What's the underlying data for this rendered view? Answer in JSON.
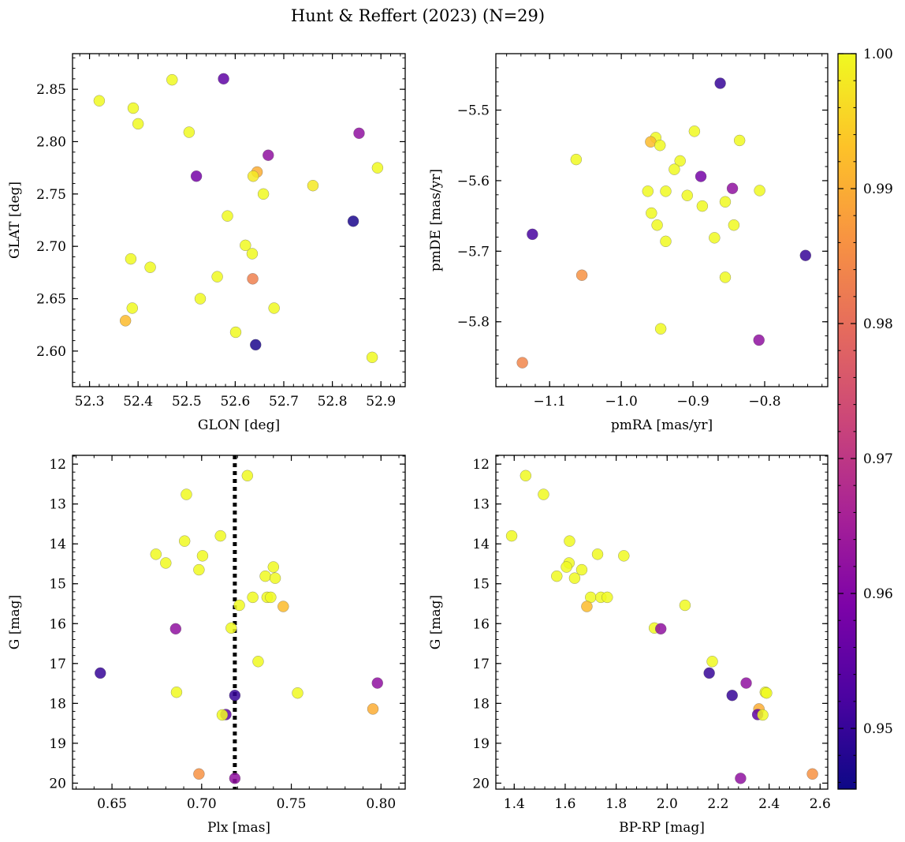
{
  "figure": {
    "title": "Hunt & Reffert (2023) (N=29)",
    "colorbar": {
      "min": 0.9455,
      "max": 1.0,
      "ticks": [
        0.95,
        0.96,
        0.97,
        0.98,
        0.99,
        1.0
      ],
      "tick_labels": [
        "0.95",
        "0.96",
        "0.97",
        "0.98",
        "0.99",
        "1.00"
      ],
      "colormap": "plasma"
    }
  },
  "chart_data": [
    {
      "type": "scatter",
      "id": "glon-glat",
      "xlabel": "GLON [deg]",
      "ylabel": "GLAT [deg]",
      "xlim": [
        52.265,
        52.95
      ],
      "ylim": [
        2.566,
        2.884
      ],
      "xticks": [
        52.3,
        52.4,
        52.5,
        52.6,
        52.7,
        52.8,
        52.9
      ],
      "xtick_labels": [
        "52.3",
        "52.4",
        "52.5",
        "52.6",
        "52.7",
        "52.8",
        "52.9"
      ],
      "yticks": [
        2.6,
        2.65,
        2.7,
        2.75,
        2.8,
        2.85
      ],
      "ytick_labels": [
        "2.60",
        "2.65",
        "2.70",
        "2.75",
        "2.80",
        "2.85"
      ],
      "x_minor": 0.02,
      "y_minor": 0.01,
      "y_inverted": false,
      "points": [
        {
          "x": 52.32,
          "y": 2.839,
          "c": 1.0
        },
        {
          "x": 52.39,
          "y": 2.832,
          "c": 1.0
        },
        {
          "x": 52.4,
          "y": 2.817,
          "c": 1.0
        },
        {
          "x": 52.47,
          "y": 2.859,
          "c": 1.0
        },
        {
          "x": 52.576,
          "y": 2.86,
          "c": 0.955
        },
        {
          "x": 52.505,
          "y": 2.809,
          "c": 1.0
        },
        {
          "x": 52.855,
          "y": 2.808,
          "c": 0.962
        },
        {
          "x": 52.668,
          "y": 2.787,
          "c": 0.962
        },
        {
          "x": 52.52,
          "y": 2.767,
          "c": 0.958
        },
        {
          "x": 52.645,
          "y": 2.771,
          "c": 0.99
        },
        {
          "x": 52.637,
          "y": 2.767,
          "c": 0.998
        },
        {
          "x": 52.893,
          "y": 2.775,
          "c": 1.0
        },
        {
          "x": 52.76,
          "y": 2.758,
          "c": 0.998
        },
        {
          "x": 52.658,
          "y": 2.75,
          "c": 1.0
        },
        {
          "x": 52.584,
          "y": 2.729,
          "c": 1.0
        },
        {
          "x": 52.843,
          "y": 2.724,
          "c": 0.947
        },
        {
          "x": 52.621,
          "y": 2.701,
          "c": 1.0
        },
        {
          "x": 52.635,
          "y": 2.693,
          "c": 1.0
        },
        {
          "x": 52.385,
          "y": 2.688,
          "c": 1.0
        },
        {
          "x": 52.425,
          "y": 2.68,
          "c": 1.0
        },
        {
          "x": 52.563,
          "y": 2.671,
          "c": 1.0
        },
        {
          "x": 52.636,
          "y": 2.669,
          "c": 0.983
        },
        {
          "x": 52.528,
          "y": 2.65,
          "c": 1.0
        },
        {
          "x": 52.388,
          "y": 2.641,
          "c": 1.0
        },
        {
          "x": 52.68,
          "y": 2.641,
          "c": 1.0
        },
        {
          "x": 52.374,
          "y": 2.629,
          "c": 0.992
        },
        {
          "x": 52.601,
          "y": 2.618,
          "c": 1.0
        },
        {
          "x": 52.642,
          "y": 2.606,
          "c": 0.947
        },
        {
          "x": 52.882,
          "y": 2.594,
          "c": 1.0
        }
      ]
    },
    {
      "type": "scatter",
      "id": "pmra-pmde",
      "xlabel": "pmRA [mas/yr]",
      "ylabel": "pmDE [mas/yr]",
      "xlim": [
        -1.175,
        -0.712
      ],
      "ylim": [
        -5.892,
        -5.42
      ],
      "xticks": [
        -1.1,
        -1.0,
        -0.9,
        -0.8
      ],
      "xtick_labels": [
        "−1.1",
        "−1.0",
        "−0.9",
        "−0.8"
      ],
      "yticks": [
        -5.8,
        -5.7,
        -5.6,
        -5.5
      ],
      "ytick_labels": [
        "−5.8",
        "−5.7",
        "−5.6",
        "−5.5"
      ],
      "x_minor": 0.02,
      "y_minor": 0.02,
      "y_inverted": false,
      "points": [
        {
          "x": -0.862,
          "y": -5.462,
          "c": 0.95
        },
        {
          "x": -0.898,
          "y": -5.53,
          "c": 1.0
        },
        {
          "x": -0.952,
          "y": -5.539,
          "c": 1.0
        },
        {
          "x": -0.959,
          "y": -5.545,
          "c": 0.992
        },
        {
          "x": -0.946,
          "y": -5.55,
          "c": 1.0
        },
        {
          "x": -0.835,
          "y": -5.543,
          "c": 1.0
        },
        {
          "x": -1.063,
          "y": -5.57,
          "c": 1.0
        },
        {
          "x": -0.918,
          "y": -5.572,
          "c": 1.0
        },
        {
          "x": -0.926,
          "y": -5.584,
          "c": 1.0
        },
        {
          "x": -0.889,
          "y": -5.594,
          "c": 0.958
        },
        {
          "x": -0.845,
          "y": -5.611,
          "c": 0.962
        },
        {
          "x": -0.963,
          "y": -5.615,
          "c": 1.0
        },
        {
          "x": -0.938,
          "y": -5.615,
          "c": 1.0
        },
        {
          "x": -0.908,
          "y": -5.621,
          "c": 1.0
        },
        {
          "x": -0.807,
          "y": -5.614,
          "c": 1.0
        },
        {
          "x": -0.855,
          "y": -5.63,
          "c": 1.0
        },
        {
          "x": -0.887,
          "y": -5.636,
          "c": 1.0
        },
        {
          "x": -0.958,
          "y": -5.646,
          "c": 1.0
        },
        {
          "x": -0.843,
          "y": -5.663,
          "c": 1.0
        },
        {
          "x": -0.95,
          "y": -5.663,
          "c": 1.0
        },
        {
          "x": -1.124,
          "y": -5.676,
          "c": 0.952
        },
        {
          "x": -0.87,
          "y": -5.681,
          "c": 1.0
        },
        {
          "x": -0.938,
          "y": -5.686,
          "c": 1.0
        },
        {
          "x": -0.743,
          "y": -5.706,
          "c": 0.95
        },
        {
          "x": -1.055,
          "y": -5.734,
          "c": 0.986
        },
        {
          "x": -0.855,
          "y": -5.737,
          "c": 1.0
        },
        {
          "x": -0.945,
          "y": -5.81,
          "c": 1.0
        },
        {
          "x": -0.808,
          "y": -5.826,
          "c": 0.962
        },
        {
          "x": -1.138,
          "y": -5.858,
          "c": 0.984
        }
      ]
    },
    {
      "type": "scatter",
      "id": "plx-g",
      "xlabel": "Plx [mas]",
      "ylabel": "G [mag]",
      "xlim": [
        0.628,
        0.8135
      ],
      "ylim": [
        11.78,
        20.15
      ],
      "xticks": [
        0.65,
        0.7,
        0.75,
        0.8
      ],
      "xtick_labels": [
        "0.65",
        "0.70",
        "0.75",
        "0.80"
      ],
      "yticks": [
        12,
        13,
        14,
        15,
        16,
        17,
        18,
        19,
        20
      ],
      "ytick_labels": [
        "12",
        "13",
        "14",
        "15",
        "16",
        "17",
        "18",
        "19",
        "20"
      ],
      "x_minor": 0.01,
      "y_minor": 0.2,
      "y_inverted": true,
      "vline": {
        "x": 0.7185,
        "style": "dotted"
      },
      "points": [
        {
          "x": 0.7255,
          "y": 12.29,
          "c": 1.0
        },
        {
          "x": 0.6915,
          "y": 12.76,
          "c": 1.0
        },
        {
          "x": 0.7105,
          "y": 13.8,
          "c": 1.0
        },
        {
          "x": 0.6905,
          "y": 13.93,
          "c": 1.0
        },
        {
          "x": 0.6745,
          "y": 14.26,
          "c": 1.0
        },
        {
          "x": 0.7005,
          "y": 14.3,
          "c": 1.0
        },
        {
          "x": 0.68,
          "y": 14.48,
          "c": 1.0
        },
        {
          "x": 0.74,
          "y": 14.58,
          "c": 1.0
        },
        {
          "x": 0.6985,
          "y": 14.65,
          "c": 1.0
        },
        {
          "x": 0.7355,
          "y": 14.81,
          "c": 1.0
        },
        {
          "x": 0.741,
          "y": 14.86,
          "c": 1.0
        },
        {
          "x": 0.7285,
          "y": 15.34,
          "c": 1.0
        },
        {
          "x": 0.7365,
          "y": 15.34,
          "c": 1.0
        },
        {
          "x": 0.7385,
          "y": 15.34,
          "c": 1.0
        },
        {
          "x": 0.721,
          "y": 15.54,
          "c": 1.0
        },
        {
          "x": 0.7455,
          "y": 15.57,
          "c": 0.992
        },
        {
          "x": 0.7165,
          "y": 16.11,
          "c": 1.0
        },
        {
          "x": 0.6855,
          "y": 16.13,
          "c": 0.962
        },
        {
          "x": 0.7315,
          "y": 16.95,
          "c": 1.0
        },
        {
          "x": 0.6435,
          "y": 17.24,
          "c": 0.95
        },
        {
          "x": 0.798,
          "y": 17.49,
          "c": 0.962
        },
        {
          "x": 0.686,
          "y": 17.72,
          "c": 1.0
        },
        {
          "x": 0.7535,
          "y": 17.74,
          "c": 1.0
        },
        {
          "x": 0.7185,
          "y": 17.8,
          "c": 0.95
        },
        {
          "x": 0.7955,
          "y": 18.14,
          "c": 0.99
        },
        {
          "x": 0.7135,
          "y": 18.28,
          "c": 0.955
        },
        {
          "x": 0.7115,
          "y": 18.29,
          "c": 1.0
        },
        {
          "x": 0.6985,
          "y": 19.77,
          "c": 0.986
        },
        {
          "x": 0.7185,
          "y": 19.88,
          "c": 0.962
        }
      ]
    },
    {
      "type": "scatter",
      "id": "bprp-g",
      "xlabel": "BP-RP [mag]",
      "ylabel": "G [mag]",
      "xlim": [
        1.328,
        2.63
      ],
      "ylim": [
        11.78,
        20.15
      ],
      "xticks": [
        1.4,
        1.6,
        1.8,
        2.0,
        2.2,
        2.4,
        2.6
      ],
      "xtick_labels": [
        "1.4",
        "1.6",
        "1.8",
        "2.0",
        "2.2",
        "2.4",
        "2.6"
      ],
      "yticks": [
        12,
        13,
        14,
        15,
        16,
        17,
        18,
        19,
        20
      ],
      "ytick_labels": [
        "12",
        "13",
        "14",
        "15",
        "16",
        "17",
        "18",
        "19",
        "20"
      ],
      "x_minor": 0.04,
      "y_minor": 0.2,
      "y_inverted": true,
      "points": [
        {
          "x": 1.445,
          "y": 12.29,
          "c": 1.0
        },
        {
          "x": 1.515,
          "y": 12.76,
          "c": 1.0
        },
        {
          "x": 1.39,
          "y": 13.8,
          "c": 1.0
        },
        {
          "x": 1.617,
          "y": 13.93,
          "c": 1.0
        },
        {
          "x": 1.727,
          "y": 14.26,
          "c": 1.0
        },
        {
          "x": 1.83,
          "y": 14.3,
          "c": 1.0
        },
        {
          "x": 1.615,
          "y": 14.48,
          "c": 1.0
        },
        {
          "x": 1.605,
          "y": 14.58,
          "c": 1.0
        },
        {
          "x": 1.665,
          "y": 14.65,
          "c": 1.0
        },
        {
          "x": 1.567,
          "y": 14.81,
          "c": 1.0
        },
        {
          "x": 1.637,
          "y": 14.86,
          "c": 1.0
        },
        {
          "x": 1.7,
          "y": 15.34,
          "c": 1.0
        },
        {
          "x": 1.74,
          "y": 15.34,
          "c": 1.0
        },
        {
          "x": 1.765,
          "y": 15.34,
          "c": 1.0
        },
        {
          "x": 1.685,
          "y": 15.57,
          "c": 0.992
        },
        {
          "x": 2.07,
          "y": 15.54,
          "c": 1.0
        },
        {
          "x": 1.95,
          "y": 16.11,
          "c": 1.0
        },
        {
          "x": 1.975,
          "y": 16.13,
          "c": 0.962
        },
        {
          "x": 2.177,
          "y": 16.95,
          "c": 1.0
        },
        {
          "x": 2.165,
          "y": 17.24,
          "c": 0.95
        },
        {
          "x": 2.31,
          "y": 17.49,
          "c": 0.962
        },
        {
          "x": 2.385,
          "y": 17.72,
          "c": 1.0
        },
        {
          "x": 2.39,
          "y": 17.74,
          "c": 1.0
        },
        {
          "x": 2.255,
          "y": 17.8,
          "c": 0.95
        },
        {
          "x": 2.36,
          "y": 18.14,
          "c": 0.99
        },
        {
          "x": 2.355,
          "y": 18.28,
          "c": 0.955
        },
        {
          "x": 2.375,
          "y": 18.29,
          "c": 1.0
        },
        {
          "x": 2.288,
          "y": 19.88,
          "c": 0.962
        },
        {
          "x": 2.57,
          "y": 19.77,
          "c": 0.986
        }
      ]
    }
  ]
}
